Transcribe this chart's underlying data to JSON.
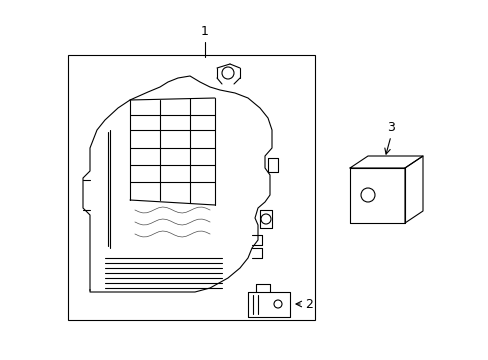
{
  "background_color": "#ffffff",
  "line_color": "#000000",
  "line_width": 0.8,
  "fig_width": 4.89,
  "fig_height": 3.6,
  "dpi": 100,
  "label1": "1",
  "label2": "2",
  "label3": "3"
}
